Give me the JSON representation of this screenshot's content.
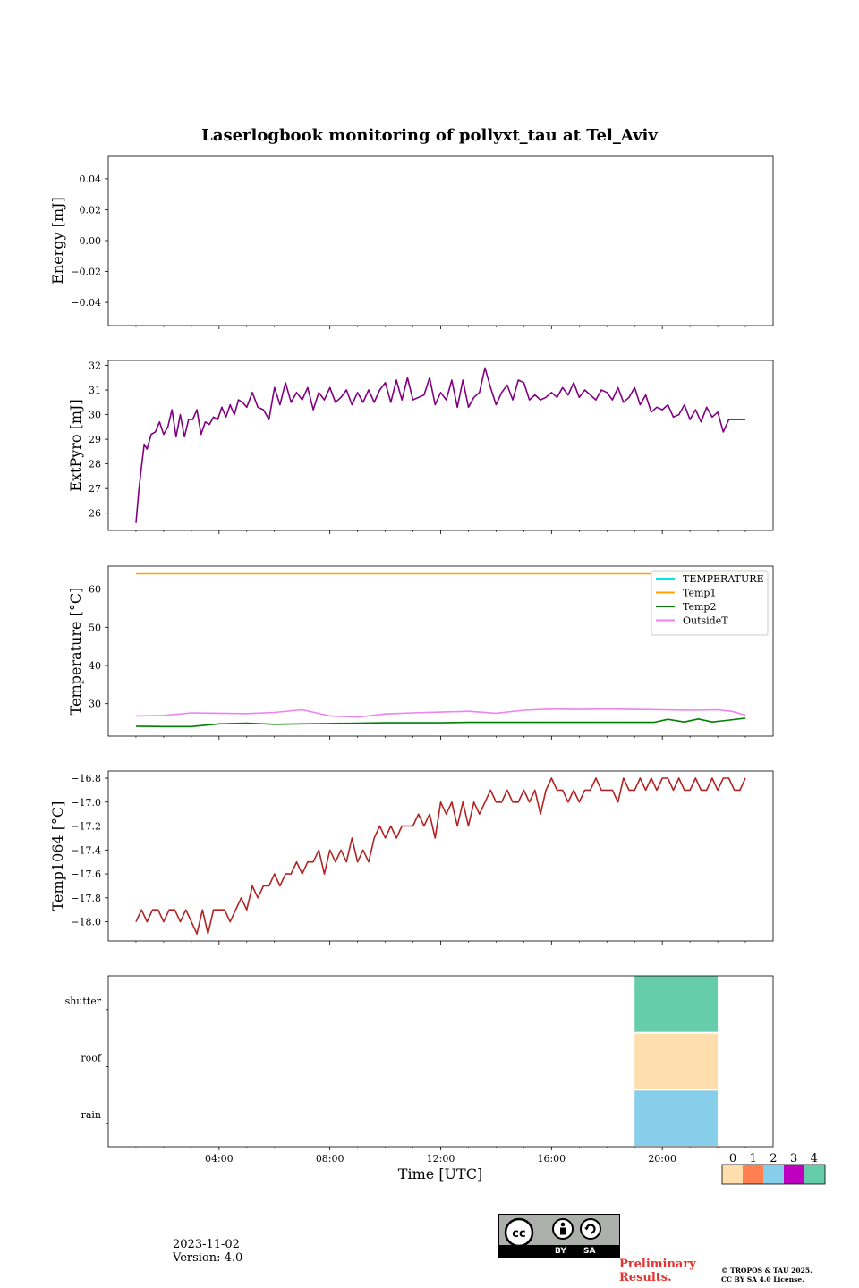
{
  "figure": {
    "title": "Laserlogbook monitoring of pollyxt_tau at Tel_Aviv",
    "date": "2023-11-02",
    "version": "Version: 4.0",
    "preliminary": [
      "Preliminary",
      "Results."
    ],
    "copyright": [
      "© TROPOS & TAU 2025.",
      "CC BY SA 4.0 License."
    ],
    "license_badge": {
      "cc": "cc",
      "by": "BY",
      "sa": "SA"
    },
    "time_axis_label": "Time [UTC]",
    "time_ticks": [
      "04:00",
      "08:00",
      "12:00",
      "16:00",
      "20:00"
    ],
    "time_tick_hours": [
      4,
      8,
      12,
      16,
      20
    ],
    "time_range_hours": [
      0,
      24
    ]
  },
  "chart_data": [
    {
      "type": "line",
      "ylabel": "Energy [mJ]",
      "ylim": [
        -0.055,
        0.055
      ],
      "yticks": [
        0.04,
        0.02,
        0.0,
        -0.02,
        -0.04
      ],
      "ytick_labels": [
        "0.04",
        "0.02",
        "0.00",
        "−0.02",
        "−0.04"
      ],
      "series": []
    },
    {
      "type": "line",
      "ylabel": "ExtPyro [mJ]",
      "ylim": [
        25.3,
        32.2
      ],
      "yticks": [
        26,
        27,
        28,
        29,
        30,
        31,
        32
      ],
      "ytick_labels": [
        "26",
        "27",
        "28",
        "29",
        "30",
        "31",
        "32"
      ],
      "series": [
        {
          "color": "#800080",
          "x": [
            1.0,
            1.1,
            1.2,
            1.3,
            1.4,
            1.55,
            1.7,
            1.85,
            2.0,
            2.15,
            2.3,
            2.45,
            2.6,
            2.75,
            2.9,
            3.05,
            3.2,
            3.35,
            3.5,
            3.65,
            3.8,
            3.95,
            4.1,
            4.25,
            4.4,
            4.55,
            4.7,
            4.85,
            5.0,
            5.2,
            5.4,
            5.6,
            5.8,
            6.0,
            6.2,
            6.4,
            6.6,
            6.8,
            7.0,
            7.2,
            7.4,
            7.6,
            7.8,
            8.0,
            8.2,
            8.4,
            8.6,
            8.8,
            9.0,
            9.2,
            9.4,
            9.6,
            9.8,
            10.0,
            10.2,
            10.4,
            10.6,
            10.8,
            11.0,
            11.2,
            11.4,
            11.6,
            11.8,
            12.0,
            12.2,
            12.4,
            12.6,
            12.8,
            13.0,
            13.2,
            13.4,
            13.6,
            13.8,
            14.0,
            14.2,
            14.4,
            14.6,
            14.8,
            15.0,
            15.2,
            15.4,
            15.6,
            15.8,
            16.0,
            16.2,
            16.4,
            16.6,
            16.8,
            17.0,
            17.2,
            17.4,
            17.6,
            17.8,
            18.0,
            18.2,
            18.4,
            18.6,
            18.8,
            19.0,
            19.2,
            19.4,
            19.6,
            19.8,
            20.0,
            20.2,
            20.4,
            20.6,
            20.8,
            21.0,
            21.2,
            21.4,
            21.6,
            21.8,
            22.0,
            22.2,
            22.4,
            22.6,
            22.8,
            23.0
          ],
          "y": [
            25.6,
            26.9,
            27.9,
            28.8,
            28.6,
            29.2,
            29.3,
            29.7,
            29.2,
            29.5,
            30.2,
            29.1,
            30.0,
            29.1,
            29.8,
            29.8,
            30.2,
            29.2,
            29.7,
            29.6,
            29.9,
            29.8,
            30.3,
            29.9,
            30.4,
            30.0,
            30.6,
            30.5,
            30.3,
            30.9,
            30.3,
            30.2,
            29.8,
            31.1,
            30.4,
            31.3,
            30.5,
            30.9,
            30.6,
            31.1,
            30.2,
            30.9,
            30.6,
            31.1,
            30.5,
            30.7,
            31.0,
            30.4,
            30.9,
            30.5,
            31.0,
            30.5,
            31.0,
            31.3,
            30.5,
            31.4,
            30.6,
            31.5,
            30.6,
            30.7,
            30.8,
            31.5,
            30.4,
            30.9,
            30.6,
            31.4,
            30.3,
            31.4,
            30.3,
            30.7,
            30.9,
            31.9,
            31.1,
            30.4,
            30.9,
            31.2,
            30.6,
            31.4,
            31.3,
            30.6,
            30.8,
            30.6,
            30.7,
            30.9,
            30.7,
            31.1,
            30.8,
            31.3,
            30.7,
            31.0,
            30.8,
            30.6,
            31.0,
            30.9,
            30.6,
            31.1,
            30.5,
            30.7,
            31.1,
            30.4,
            30.8,
            30.1,
            30.3,
            30.2,
            30.4,
            29.9,
            30.0,
            30.4,
            29.8,
            30.2,
            29.7,
            30.3,
            29.9,
            30.1,
            29.3,
            29.8,
            29.8,
            29.8,
            29.8
          ],
          "name": ""
        }
      ]
    },
    {
      "type": "line",
      "ylabel": "Temperature [°C]",
      "ylim": [
        21.5,
        66
      ],
      "yticks": [
        30,
        40,
        50,
        60
      ],
      "ytick_labels": [
        "30",
        "40",
        "50",
        "60"
      ],
      "legend_loc": "upper right",
      "series": [
        {
          "name": "TEMPERATURE",
          "color": "#00e5e5",
          "x": [],
          "y": []
        },
        {
          "name": "Temp1",
          "color": "#ffa500",
          "x": [
            1.0,
            23.0
          ],
          "y": [
            64.0,
            64.0
          ]
        },
        {
          "name": "Temp2",
          "color": "#008000",
          "x": [
            1.0,
            2.0,
            3.0,
            4.0,
            5.0,
            6.0,
            7.0,
            8.0,
            9.0,
            10.0,
            11.0,
            12.0,
            13.0,
            14.0,
            15.0,
            16.0,
            17.0,
            18.0,
            19.0,
            19.7,
            20.2,
            20.8,
            21.3,
            21.8,
            22.3,
            23.0
          ],
          "y": [
            24.1,
            24.0,
            24.0,
            24.7,
            24.9,
            24.6,
            24.7,
            24.8,
            24.9,
            25.0,
            25.0,
            25.0,
            25.1,
            25.1,
            25.1,
            25.1,
            25.1,
            25.1,
            25.1,
            25.1,
            25.9,
            25.2,
            26.0,
            25.2,
            25.6,
            26.2
          ]
        },
        {
          "name": "OutsideT",
          "color": "#ee82ee",
          "x": [
            1.0,
            2.0,
            3.0,
            4.0,
            5.0,
            6.0,
            7.0,
            8.0,
            9.0,
            10.0,
            11.0,
            12.0,
            13.0,
            14.0,
            15.0,
            16.0,
            17.0,
            18.0,
            19.0,
            20.0,
            21.0,
            22.0,
            22.5,
            23.0
          ],
          "y": [
            26.8,
            26.9,
            27.6,
            27.5,
            27.4,
            27.7,
            28.4,
            26.8,
            26.5,
            27.3,
            27.6,
            27.8,
            28.0,
            27.5,
            28.3,
            28.6,
            28.5,
            28.6,
            28.5,
            28.4,
            28.3,
            28.4,
            28.0,
            27.0
          ]
        }
      ]
    },
    {
      "type": "line",
      "ylabel": "Temp1064 [°C]",
      "ylim": [
        -18.16,
        -16.74
      ],
      "yticks": [
        -16.8,
        -17.0,
        -17.2,
        -17.4,
        -17.6,
        -17.8,
        -18.0
      ],
      "ytick_labels": [
        "−16.8",
        "−17.0",
        "−17.2",
        "−17.4",
        "−17.6",
        "−17.8",
        "−18.0"
      ],
      "series": [
        {
          "color": "#b22222",
          "x": [
            1.0,
            1.2,
            1.4,
            1.6,
            1.8,
            2.0,
            2.2,
            2.4,
            2.6,
            2.8,
            3.0,
            3.2,
            3.4,
            3.6,
            3.8,
            4.0,
            4.2,
            4.4,
            4.6,
            4.8,
            5.0,
            5.2,
            5.4,
            5.6,
            5.8,
            6.0,
            6.2,
            6.4,
            6.6,
            6.8,
            7.0,
            7.2,
            7.4,
            7.6,
            7.8,
            8.0,
            8.2,
            8.4,
            8.6,
            8.8,
            9.0,
            9.2,
            9.4,
            9.6,
            9.8,
            10.0,
            10.2,
            10.4,
            10.6,
            10.8,
            11.0,
            11.2,
            11.4,
            11.6,
            11.8,
            12.0,
            12.2,
            12.4,
            12.6,
            12.8,
            13.0,
            13.2,
            13.4,
            13.6,
            13.8,
            14.0,
            14.2,
            14.4,
            14.6,
            14.8,
            15.0,
            15.2,
            15.4,
            15.6,
            15.8,
            16.0,
            16.2,
            16.4,
            16.6,
            16.8,
            17.0,
            17.2,
            17.4,
            17.6,
            17.8,
            18.0,
            18.2,
            18.4,
            18.6,
            18.8,
            19.0,
            19.2,
            19.4,
            19.6,
            19.8,
            20.0,
            20.2,
            20.4,
            20.6,
            20.8,
            21.0,
            21.2,
            21.4,
            21.6,
            21.8,
            22.0,
            22.2,
            22.4,
            22.6,
            22.8,
            23.0
          ],
          "y": [
            -18.0,
            -17.9,
            -18.0,
            -17.9,
            -17.9,
            -18.0,
            -17.9,
            -17.9,
            -18.0,
            -17.9,
            -18.0,
            -18.1,
            -17.9,
            -18.1,
            -17.9,
            -17.9,
            -17.9,
            -18.0,
            -17.9,
            -17.8,
            -17.9,
            -17.7,
            -17.8,
            -17.7,
            -17.7,
            -17.6,
            -17.7,
            -17.6,
            -17.6,
            -17.5,
            -17.6,
            -17.5,
            -17.5,
            -17.4,
            -17.6,
            -17.4,
            -17.5,
            -17.4,
            -17.5,
            -17.3,
            -17.5,
            -17.4,
            -17.5,
            -17.3,
            -17.2,
            -17.3,
            -17.2,
            -17.3,
            -17.2,
            -17.2,
            -17.2,
            -17.1,
            -17.2,
            -17.1,
            -17.3,
            -17.0,
            -17.1,
            -17.0,
            -17.2,
            -17.0,
            -17.2,
            -17.0,
            -17.1,
            -17.0,
            -16.9,
            -17.0,
            -17.0,
            -16.9,
            -17.0,
            -17.0,
            -16.9,
            -17.0,
            -16.9,
            -17.1,
            -16.9,
            -16.8,
            -16.9,
            -16.9,
            -17.0,
            -16.9,
            -17.0,
            -16.9,
            -16.9,
            -16.8,
            -16.9,
            -16.9,
            -16.9,
            -17.0,
            -16.8,
            -16.9,
            -16.9,
            -16.8,
            -16.9,
            -16.8,
            -16.9,
            -16.8,
            -16.8,
            -16.9,
            -16.8,
            -16.9,
            -16.9,
            -16.8,
            -16.9,
            -16.9,
            -16.8,
            -16.9,
            -16.8,
            -16.8,
            -16.9,
            -16.9,
            -16.8
          ],
          "name": ""
        }
      ]
    },
    {
      "type": "heatmap",
      "rows": [
        "shutter",
        "roof",
        "rain"
      ],
      "blocks": [
        {
          "row": "shutter",
          "x0": 19.0,
          "x1": 22.0,
          "value": 4
        },
        {
          "row": "roof",
          "x0": 19.0,
          "x1": 22.0,
          "value": 0
        },
        {
          "row": "rain",
          "x0": 19.0,
          "x1": 22.0,
          "value": 2
        }
      ],
      "colorbar": {
        "labels": [
          "0",
          "1",
          "2",
          "3",
          "4"
        ],
        "colors": [
          "#ffdead",
          "#ff7f50",
          "#87ceeb",
          "#c000c0",
          "#66cdaa"
        ]
      }
    }
  ]
}
